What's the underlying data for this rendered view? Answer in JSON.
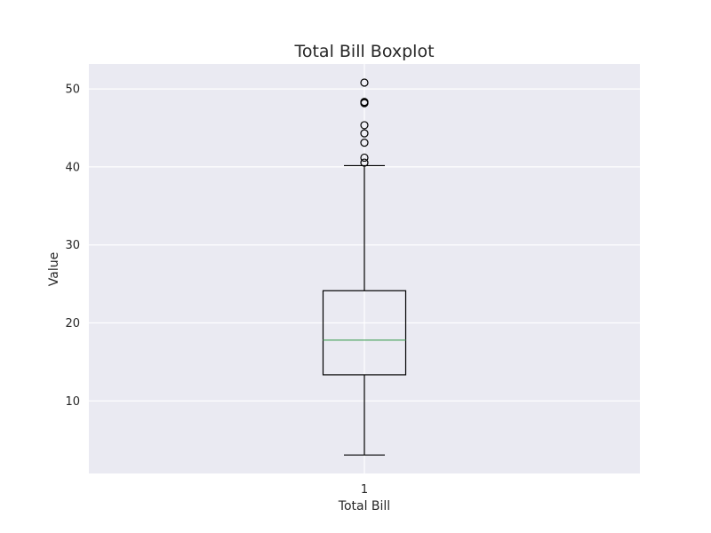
{
  "chart_data": {
    "type": "box",
    "title": "Total Bill Boxplot",
    "xlabel": "Total Bill",
    "ylabel": "Value",
    "categories": [
      "1"
    ],
    "ylim": [
      0.7,
      53.2
    ],
    "y_ticks": [
      "10",
      "20",
      "30",
      "40",
      "50"
    ],
    "grid": true,
    "series": [
      {
        "whisker_low": 3.07,
        "q1": 13.35,
        "median": 17.8,
        "q3": 24.13,
        "whisker_high": 40.17,
        "outliers": [
          40.55,
          41.19,
          43.11,
          44.3,
          45.35,
          48.17,
          48.27,
          48.33,
          50.81
        ]
      }
    ],
    "colors": {
      "plot_background": "#eaeaf2",
      "grid": "#ffffff",
      "box": "#000000",
      "median": "#55a868"
    }
  }
}
